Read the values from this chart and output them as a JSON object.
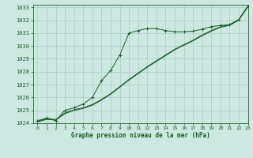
{
  "title": "Graphe pression niveau de la mer (hPa)",
  "background_color": "#cde8e0",
  "grid_color": "#a8ccc4",
  "line_color": "#1a5c28",
  "xlim": [
    -0.5,
    23
  ],
  "ylim": [
    1024.0,
    1033.2
  ],
  "yticks": [
    1024,
    1025,
    1026,
    1027,
    1028,
    1029,
    1030,
    1031,
    1032,
    1033
  ],
  "xticks": [
    0,
    1,
    2,
    3,
    4,
    5,
    6,
    7,
    8,
    9,
    10,
    11,
    12,
    13,
    14,
    15,
    16,
    17,
    18,
    19,
    20,
    21,
    22,
    23
  ],
  "series1_x": [
    0,
    1,
    2,
    3,
    4,
    5,
    6,
    7,
    8,
    9,
    10,
    11,
    12,
    13,
    14,
    15,
    16,
    17,
    18,
    19,
    20,
    21,
    22,
    23
  ],
  "series1_y": [
    1024.2,
    1024.4,
    1024.2,
    1025.0,
    1025.2,
    1025.5,
    1026.0,
    1027.3,
    1028.1,
    1029.3,
    1031.0,
    1031.2,
    1031.35,
    1031.35,
    1031.2,
    1031.1,
    1031.1,
    1031.15,
    1031.3,
    1031.5,
    1031.6,
    1031.65,
    1032.05,
    1033.1
  ],
  "series2_x": [
    0,
    1,
    2,
    3,
    4,
    5,
    6,
    7,
    8,
    9,
    10,
    11,
    12,
    13,
    14,
    15,
    16,
    17,
    18,
    19,
    20,
    21,
    22,
    23
  ],
  "series2_y": [
    1024.15,
    1024.35,
    1024.3,
    1024.8,
    1025.05,
    1025.2,
    1025.45,
    1025.85,
    1026.3,
    1026.85,
    1027.4,
    1027.9,
    1028.4,
    1028.85,
    1029.3,
    1029.75,
    1030.1,
    1030.45,
    1030.85,
    1031.2,
    1031.5,
    1031.65,
    1032.05,
    1033.1
  ],
  "series3_x": [
    0,
    1,
    2,
    3,
    4,
    5,
    6,
    7,
    8,
    9,
    10,
    11,
    12,
    13,
    14,
    15,
    16,
    17,
    18,
    19,
    20,
    21,
    22,
    23
  ],
  "series3_y": [
    1024.1,
    1024.3,
    1024.25,
    1024.75,
    1025.0,
    1025.15,
    1025.4,
    1025.8,
    1026.25,
    1026.8,
    1027.35,
    1027.85,
    1028.35,
    1028.8,
    1029.25,
    1029.7,
    1030.05,
    1030.4,
    1030.8,
    1031.15,
    1031.45,
    1031.6,
    1032.0,
    1033.05
  ]
}
